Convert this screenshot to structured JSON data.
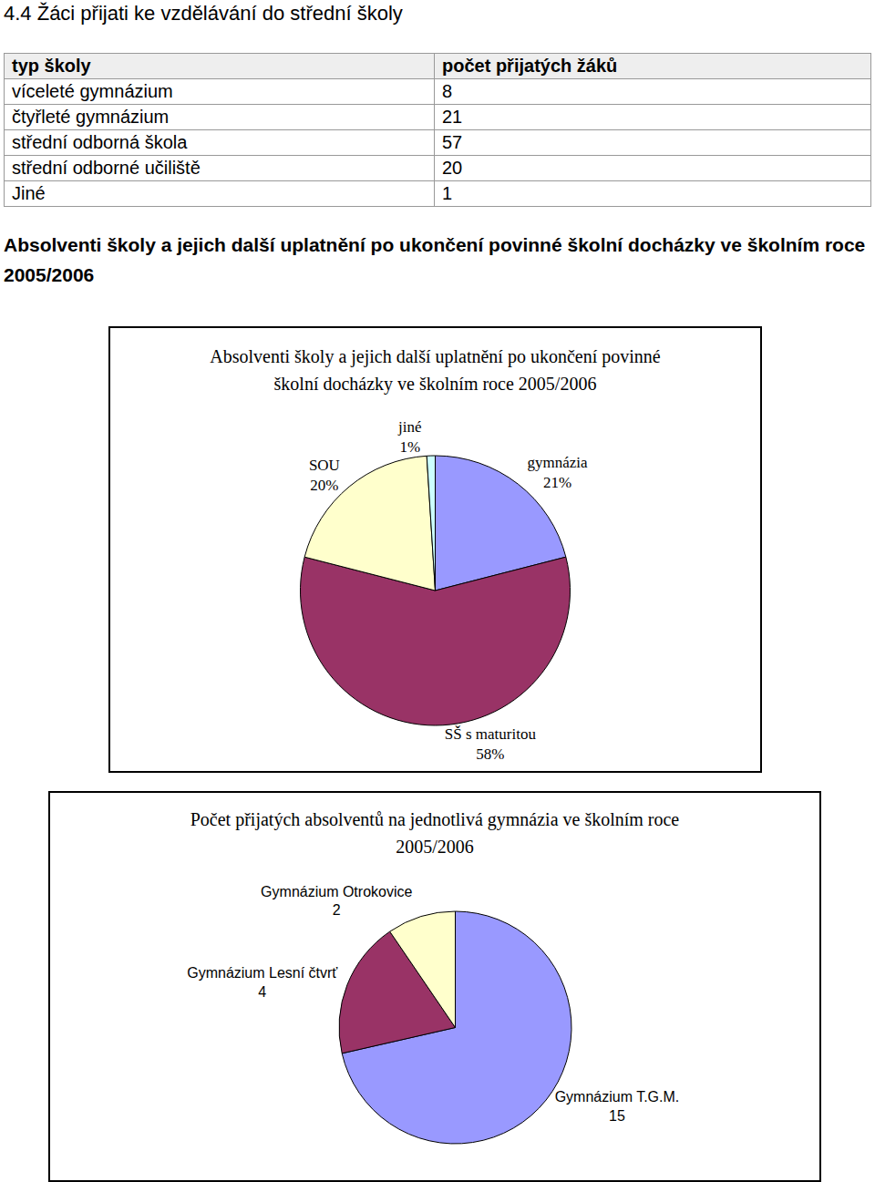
{
  "heading": "4.4 Žáci přijati ke vzdělávání do střední školy",
  "table": {
    "header": [
      "typ školy",
      "počet přijatých žáků"
    ],
    "rows": [
      [
        "víceleté gymnázium",
        8
      ],
      [
        "čtyřleté gymnázium",
        21
      ],
      [
        "střední odborná škola",
        57
      ],
      [
        "střední odborné učiliště",
        20
      ],
      [
        "Jiné",
        1
      ]
    ]
  },
  "section_title": "Absolventi školy a jejich další uplatnění po ukončení povinné školní docházky ve školním roce 2005/2006",
  "chart_data": [
    {
      "type": "pie",
      "title": "Absolventi školy a jejich další uplatnění po ukončení povinné školní docházky ve školním roce 2005/2006",
      "categories": [
        "gymnázia",
        "SŠ s maturitou",
        "SOU",
        "jiné"
      ],
      "values": [
        21,
        58,
        20,
        1
      ],
      "value_labels": [
        "21%",
        "58%",
        "20%",
        "1%"
      ],
      "colors": [
        "#9999ff",
        "#993366",
        "#ffffcc",
        "#ccffff"
      ],
      "data_labels": true
    },
    {
      "type": "pie",
      "title": "Počet přijatých absolventů na jednotlivá gymnázia ve školním roce 2005/2006",
      "categories": [
        "Gymnázium T.G.M.",
        "Gymnázium Lesní čtvrť",
        "Gymnázium Otrokovice"
      ],
      "values": [
        15,
        4,
        2
      ],
      "colors": [
        "#9999ff",
        "#993366",
        "#ffffcc"
      ],
      "data_labels": true
    }
  ]
}
